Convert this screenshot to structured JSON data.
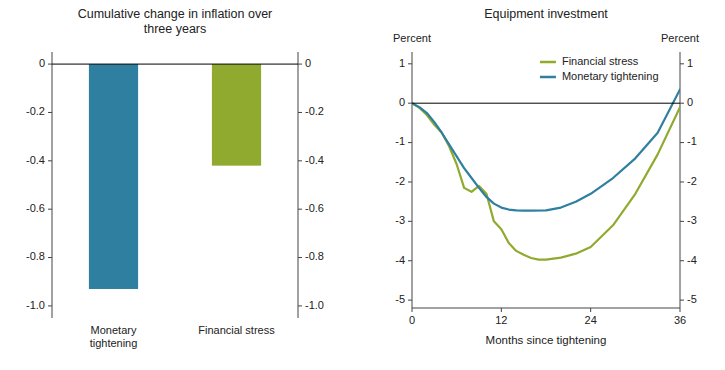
{
  "chart_data": [
    {
      "type": "bar",
      "title": "Cumulative change in inflation over\nthree years",
      "categories": [
        "Monetary\ntightening",
        "Financial stress"
      ],
      "values": [
        -0.93,
        -0.42
      ],
      "colors": [
        "#2e7fa0",
        "#8faa2e"
      ],
      "ylim": [
        -1.05,
        0.05
      ],
      "yticks": [
        0,
        -0.2,
        -0.4,
        -0.6,
        -0.8,
        {
          "value": -1.0,
          "label": "-1.0"
        }
      ],
      "y2lim": [
        -1.05,
        0.05
      ],
      "y2ticks": [
        0,
        -0.2,
        -0.4,
        -0.6,
        -0.8,
        {
          "value": -1.0,
          "label": "-1.0"
        }
      ]
    },
    {
      "type": "line",
      "title": "Equipment investment",
      "x_label": "Months since tightening",
      "y_label": "Percent",
      "y2_label": "Percent",
      "xlim": [
        0,
        36
      ],
      "xticks": [
        0,
        12,
        24,
        36
      ],
      "ylim": [
        -5.2,
        1.3
      ],
      "yticks": [
        1,
        0,
        -1,
        -2,
        -3,
        -4,
        -5
      ],
      "y2lim": [
        -5.2,
        1.3
      ],
      "y2ticks": [
        1,
        0,
        -1,
        -2,
        -3,
        -4,
        -5
      ],
      "legend": "upper right",
      "series": [
        {
          "name": "Financial stress",
          "color": "#8faa2e",
          "x": [
            0,
            1,
            2,
            3,
            4,
            5,
            6,
            7,
            8,
            9,
            10,
            11,
            12,
            13,
            14,
            15,
            16,
            17,
            18,
            20,
            22,
            24,
            27,
            30,
            33,
            36
          ],
          "values": [
            0.0,
            -0.12,
            -0.3,
            -0.55,
            -0.75,
            -1.1,
            -1.55,
            -2.15,
            -2.25,
            -2.1,
            -2.3,
            -3.0,
            -3.2,
            -3.55,
            -3.75,
            -3.85,
            -3.93,
            -3.97,
            -3.97,
            -3.92,
            -3.82,
            -3.65,
            -3.1,
            -2.3,
            -1.3,
            -0.1
          ]
        },
        {
          "name": "Monetary tightening",
          "color": "#2e7fa0",
          "x": [
            0,
            1,
            2,
            3,
            4,
            5,
            6,
            7,
            8,
            9,
            10,
            11,
            12,
            13,
            14,
            15,
            16,
            18,
            20,
            22,
            24,
            27,
            30,
            33,
            36
          ],
          "values": [
            0,
            -0.1,
            -0.25,
            -0.48,
            -0.75,
            -1.05,
            -1.35,
            -1.65,
            -1.9,
            -2.15,
            -2.38,
            -2.55,
            -2.65,
            -2.7,
            -2.72,
            -2.73,
            -2.73,
            -2.72,
            -2.65,
            -2.5,
            -2.3,
            -1.9,
            -1.4,
            -0.75,
            0.35
          ]
        }
      ]
    }
  ]
}
